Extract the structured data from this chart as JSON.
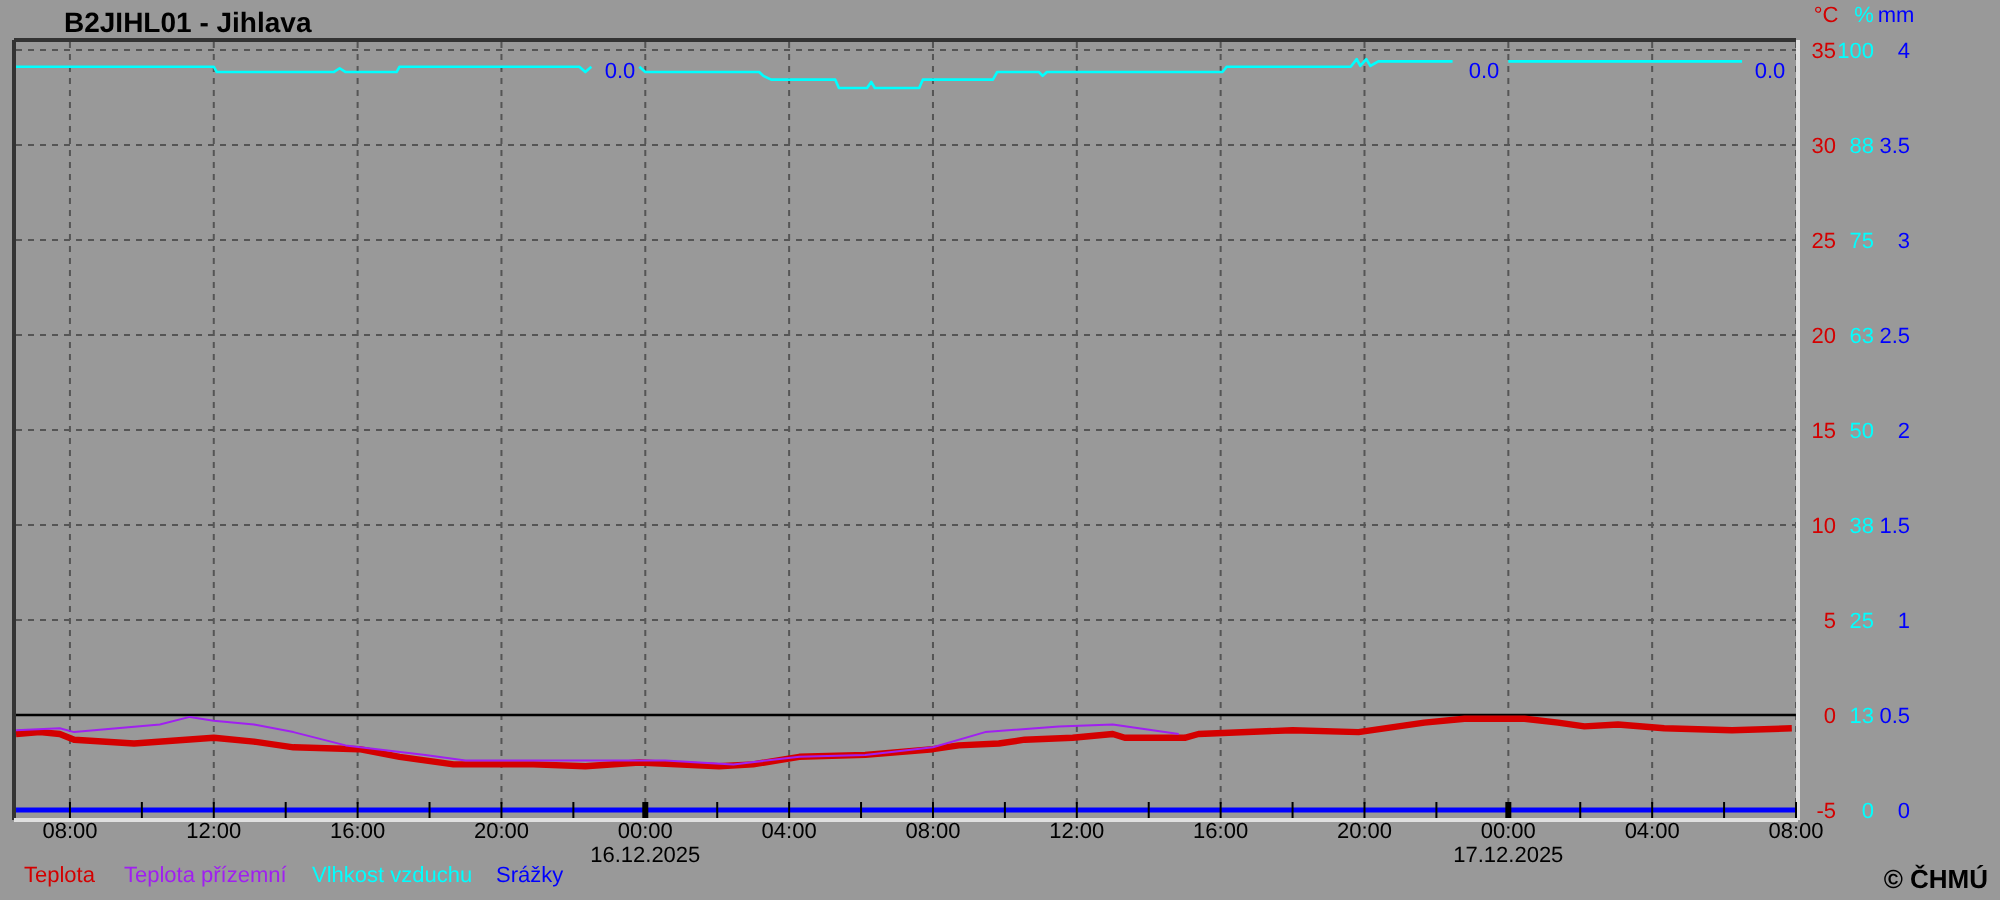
{
  "chart_data": {
    "type": "line",
    "title": "B2JIHL01 - Jihlava",
    "ylabel": "°C",
    "y2label": "%",
    "y3label": "mm",
    "xlim": [
      "2025-12-15T06:30",
      "2025-12-17T08:00"
    ],
    "xticks": [
      {
        "value": "2025-12-15T08:00",
        "label": "08:00"
      },
      {
        "value": "2025-12-15T10:00",
        "label": null
      },
      {
        "value": "2025-12-15T12:00",
        "label": "12:00"
      },
      {
        "value": "2025-12-15T14:00",
        "label": null
      },
      {
        "value": "2025-12-15T16:00",
        "label": "16:00"
      },
      {
        "value": "2025-12-15T18:00",
        "label": null
      },
      {
        "value": "2025-12-15T20:00",
        "label": "20:00"
      },
      {
        "value": "2025-12-15T22:00",
        "label": null
      },
      {
        "value": "2025-12-16T00:00",
        "label": "00:00\n16.12.2025"
      },
      {
        "value": "2025-12-16T02:00",
        "label": null
      },
      {
        "value": "2025-12-16T04:00",
        "label": "04:00"
      },
      {
        "value": "2025-12-16T06:00",
        "label": null
      },
      {
        "value": "2025-12-16T08:00",
        "label": "08:00"
      },
      {
        "value": "2025-12-16T10:00",
        "label": null
      },
      {
        "value": "2025-12-16T12:00",
        "label": "12:00"
      },
      {
        "value": "2025-12-16T14:00",
        "label": null
      },
      {
        "value": "2025-12-16T16:00",
        "label": "16:00"
      },
      {
        "value": "2025-12-16T18:00",
        "label": null
      },
      {
        "value": "2025-12-16T20:00",
        "label": "20:00"
      },
      {
        "value": "2025-12-16T22:00",
        "label": null
      },
      {
        "value": "2025-12-17T00:00",
        "label": "00:00\n17.12.2025"
      },
      {
        "value": "2025-12-17T02:00",
        "label": null
      },
      {
        "value": "2025-12-17T04:00",
        "label": "04:00"
      },
      {
        "value": "2025-12-17T06:00",
        "label": null
      },
      {
        "value": "2025-12-17T08:00",
        "label": "08:00"
      }
    ],
    "ylim": [
      -5,
      35
    ],
    "yticks": [
      -5,
      0,
      5,
      10,
      15,
      20,
      25,
      30,
      35
    ],
    "y2lim": [
      0,
      100
    ],
    "y2ticks": [
      0,
      {
        "value": 12.5,
        "label": "13"
      },
      25,
      {
        "value": 37.5,
        "label": "38"
      },
      50,
      {
        "value": 62.5,
        "label": "63"
      },
      75,
      {
        "value": 87.5,
        "label": "88"
      },
      100
    ],
    "y3lim": [
      0,
      4
    ],
    "y3ticks": [
      0,
      0.5,
      1,
      1.5,
      2,
      2.5,
      3,
      3.5,
      4
    ],
    "grid": true,
    "legend": "bottom left",
    "ref_lines": [
      {
        "axis": "y",
        "value": 0,
        "label": null,
        "color": "#000000"
      }
    ],
    "series": [
      {
        "name": "Teplota",
        "color": "#d40000",
        "x": [
          "2025-12-15T06:30",
          "2025-12-15T07:10",
          "2025-12-15T07:43",
          "2025-12-15T08:07",
          "2025-12-15T09:47",
          "2025-12-15T12:00",
          "2025-12-15T13:07",
          "2025-12-15T14:13",
          "2025-12-15T16:03",
          "2025-12-15T17:10",
          "2025-12-15T18:40",
          "2025-12-15T20:53",
          "2025-12-15T22:20",
          "2025-12-15T23:50",
          "2025-12-16T02:03",
          "2025-12-16T03:00",
          "2025-12-16T04:17",
          "2025-12-16T06:07",
          "2025-12-16T08:00",
          "2025-12-16T08:43",
          "2025-12-16T09:50",
          "2025-12-16T10:33",
          "2025-12-16T11:53",
          "2025-12-16T13:00",
          "2025-12-16T13:20",
          "2025-12-16T15:00",
          "2025-12-16T15:23",
          "2025-12-16T18:00",
          "2025-12-16T19:50",
          "2025-12-16T21:40",
          "2025-12-16T22:47",
          "2025-12-17T00:27",
          "2025-12-17T01:23",
          "2025-12-17T02:07",
          "2025-12-17T03:03",
          "2025-12-17T04:20",
          "2025-12-17T06:13",
          "2025-12-17T07:53"
        ],
        "values": [
          -1.0,
          -0.9,
          -1.0,
          -1.3,
          -1.5,
          -1.2,
          -1.4,
          -1.7,
          -1.8,
          -2.2,
          -2.6,
          -2.6,
          -2.7,
          -2.5,
          -2.7,
          -2.6,
          -2.2,
          -2.1,
          -1.8,
          -1.6,
          -1.5,
          -1.3,
          -1.2,
          -1.0,
          -1.2,
          -1.2,
          -1.0,
          -0.8,
          -0.9,
          -0.4,
          -0.2,
          -0.2,
          -0.4,
          -0.6,
          -0.5,
          -0.7,
          -0.8,
          -0.7
        ]
      },
      {
        "name": "Teplota přízemní",
        "color": "#a020f0",
        "x": [
          "2025-12-15T06:30",
          "2025-12-15T07:43",
          "2025-12-15T08:07",
          "2025-12-15T10:30",
          "2025-12-15T11:20",
          "2025-12-15T12:00",
          "2025-12-15T13:07",
          "2025-12-15T14:13",
          "2025-12-15T15:40",
          "2025-12-15T17:53",
          "2025-12-15T19:00",
          "2025-12-15T20:53",
          "2025-12-16T00:33",
          "2025-12-16T02:27",
          "2025-12-16T04:17",
          "2025-12-16T06:07",
          "2025-12-16T08:00",
          "2025-12-16T09:27",
          "2025-12-16T11:30",
          "2025-12-16T13:00",
          "2025-12-16T14:50"
        ],
        "values": [
          -0.8,
          -0.7,
          -0.9,
          -0.5,
          -0.1,
          -0.3,
          -0.5,
          -0.9,
          -1.6,
          -2.1,
          -2.4,
          -2.4,
          -2.4,
          -2.6,
          -2.2,
          -2.1,
          -1.7,
          -0.9,
          -0.6,
          -0.5,
          -1.0
        ]
      },
      {
        "name": "Vlhkost vzduchu",
        "color": "#00ffff",
        "axis": "y2",
        "x": [
          "2025-12-15T06:30",
          "2025-12-15T12:00",
          "2025-12-15T12:05",
          "2025-12-15T15:20",
          "2025-12-15T15:30",
          "2025-12-15T15:40",
          "2025-12-15T17:05",
          "2025-12-15T17:10",
          "2025-12-15T22:10",
          "2025-12-15T22:20",
          "2025-12-15T22:30",
          "2025-12-15T23:15",
          "2025-12-15T23:50",
          "2025-12-16T00:00",
          "2025-12-16T03:10",
          "2025-12-16T03:17",
          "2025-12-16T03:30",
          "2025-12-16T05:17",
          "2025-12-16T05:23",
          "2025-12-16T06:10",
          "2025-12-16T06:17",
          "2025-12-16T06:23",
          "2025-12-16T07:37",
          "2025-12-16T07:43",
          "2025-12-16T09:40",
          "2025-12-16T09:47",
          "2025-12-16T10:57",
          "2025-12-16T11:03",
          "2025-12-16T11:10",
          "2025-12-16T16:03",
          "2025-12-16T16:10",
          "2025-12-16T19:37",
          "2025-12-16T19:47",
          "2025-12-16T19:53",
          "2025-12-16T20:03",
          "2025-12-16T20:10",
          "2025-12-16T20:23",
          "2025-12-16T22:27",
          "2025-12-16T23:15",
          "2025-12-17T00:00",
          "2025-12-17T06:30"
        ],
        "values": [
          97.8,
          97.8,
          97.1,
          97.1,
          97.6,
          97.1,
          97.1,
          97.8,
          97.8,
          97.1,
          97.8,
          null,
          97.8,
          97.1,
          97.1,
          96.6,
          96.1,
          96.1,
          95.0,
          95.0,
          95.8,
          95.0,
          95.0,
          96.1,
          96.1,
          97.1,
          97.1,
          96.6,
          97.1,
          97.1,
          97.8,
          97.8,
          98.8,
          97.9,
          98.8,
          97.9,
          98.5,
          98.5,
          null,
          98.5,
          98.5
        ]
      },
      {
        "name": "Srážky",
        "color": "#0000ff",
        "axis": "y3",
        "x": [
          "2025-12-15T06:30",
          "2025-12-17T08:00"
        ],
        "values": [
          0,
          0
        ]
      }
    ],
    "annotations": [
      "0.0",
      "0.0",
      "0.0",
      "© ČHMÚ"
    ]
  }
}
